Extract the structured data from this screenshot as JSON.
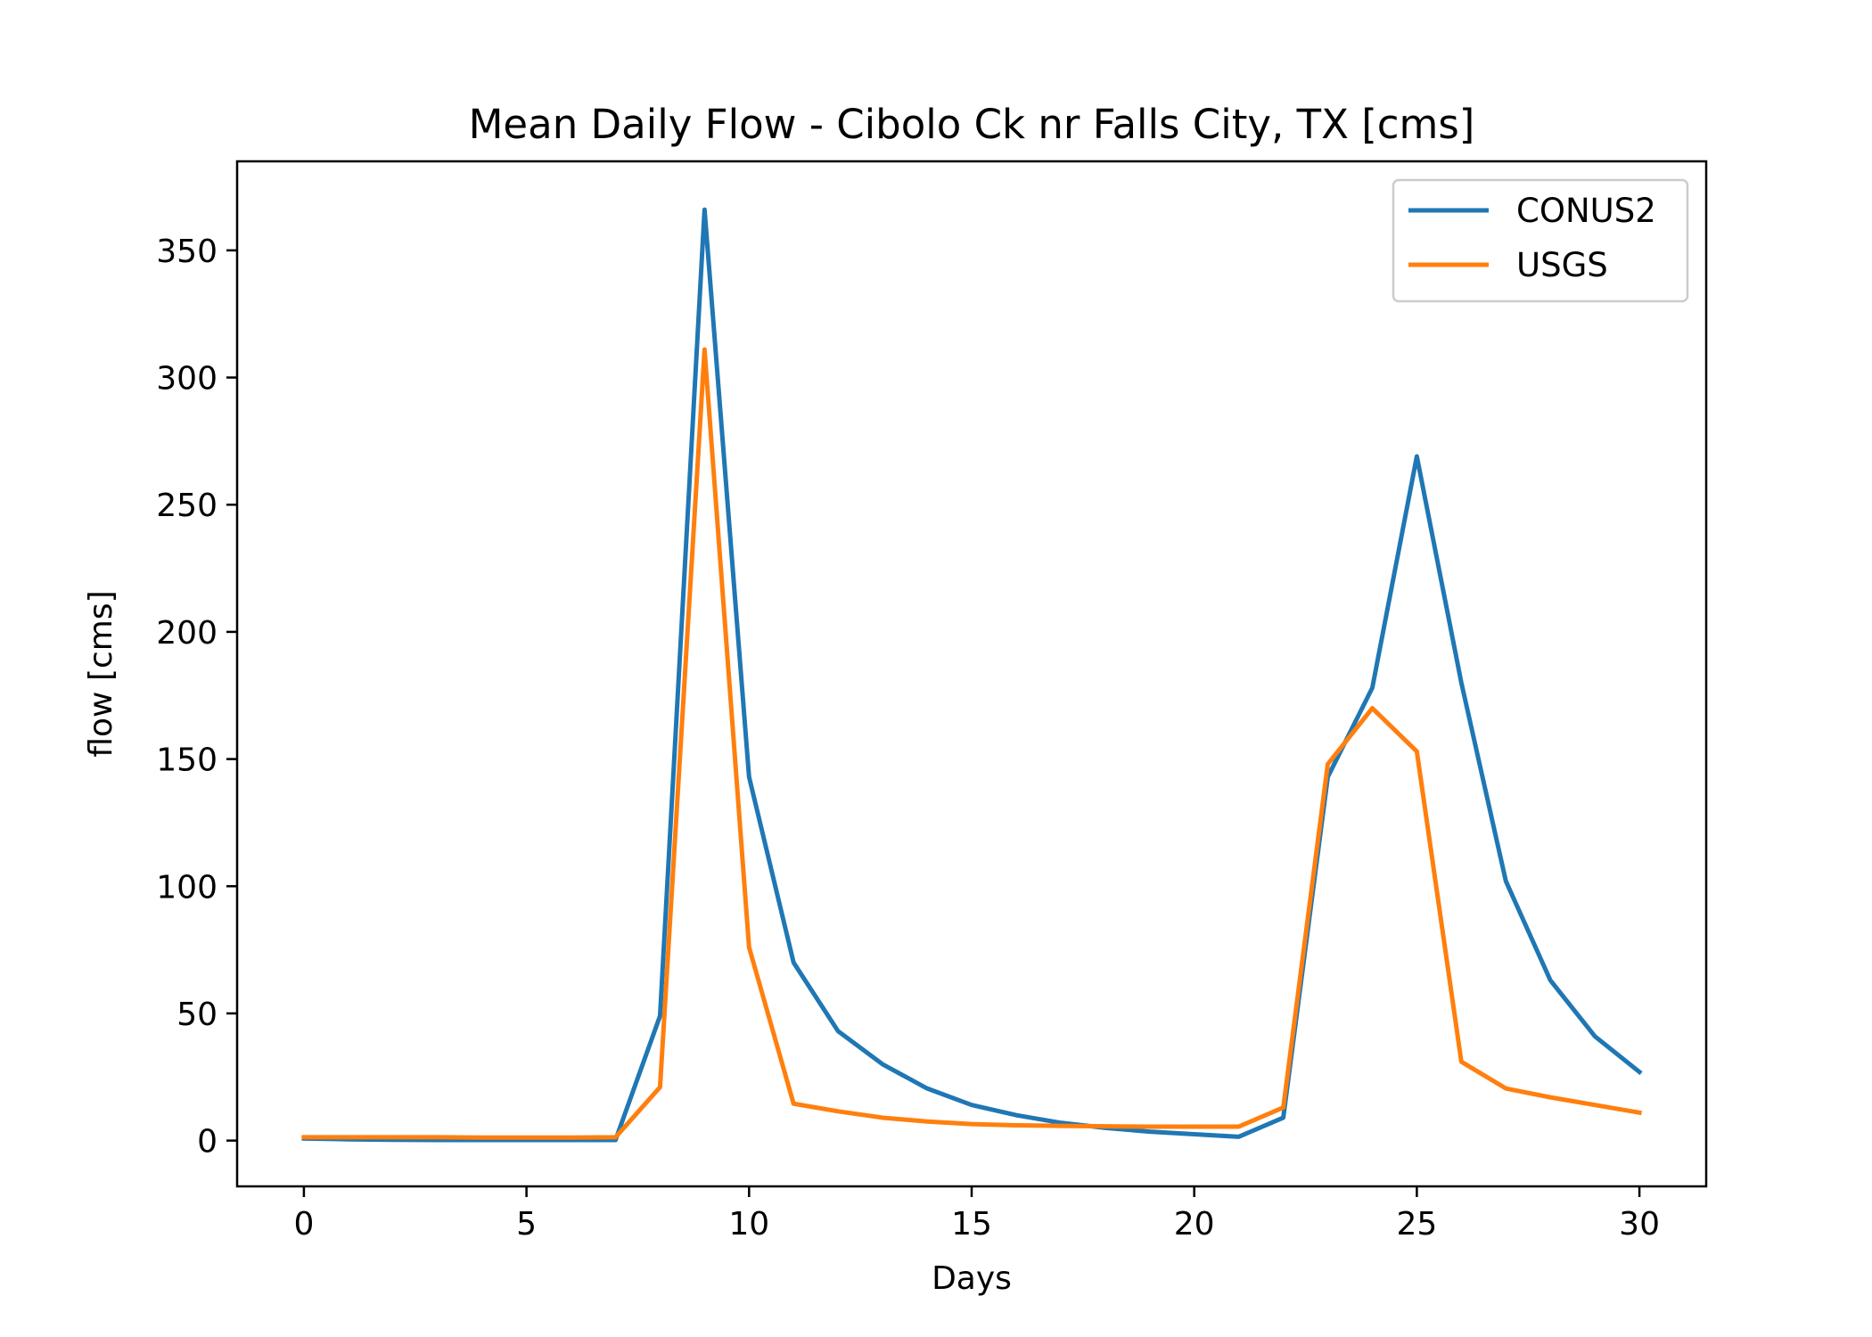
{
  "chart_data": {
    "type": "line",
    "title": "Mean Daily Flow - Cibolo Ck nr Falls City, TX [cms]",
    "xlabel": "Days",
    "ylabel": "flow [cms]",
    "xlim": [
      -1.5,
      31.5
    ],
    "ylim": [
      -18,
      385
    ],
    "xticks": [
      0,
      5,
      10,
      15,
      20,
      25,
      30
    ],
    "yticks": [
      0,
      50,
      100,
      150,
      200,
      250,
      300,
      350
    ],
    "grid": false,
    "legend_position": "top-right",
    "x": [
      0,
      1,
      2,
      3,
      4,
      5,
      6,
      7,
      8,
      9,
      10,
      11,
      12,
      13,
      14,
      15,
      16,
      17,
      18,
      19,
      20,
      21,
      22,
      23,
      24,
      25,
      26,
      27,
      28,
      29,
      30
    ],
    "series": [
      {
        "name": "CONUS2",
        "color": "#1f77b4",
        "values": [
          0.8,
          0.5,
          0.3,
          0.2,
          0.2,
          0.2,
          0.2,
          0.2,
          49,
          366,
          143,
          70,
          43,
          30,
          20.5,
          14,
          10,
          7,
          5,
          3.5,
          2.5,
          1.5,
          9,
          143,
          178,
          269,
          180,
          102,
          63,
          41,
          27
        ]
      },
      {
        "name": "USGS",
        "color": "#ff7f0e",
        "values": [
          1.3,
          1.3,
          1.3,
          1.3,
          1.2,
          1.2,
          1.2,
          1.3,
          21,
          311,
          76,
          14.5,
          11.5,
          9,
          7.5,
          6.5,
          6,
          5.8,
          5.6,
          5.5,
          5.5,
          5.5,
          13,
          148,
          170,
          153,
          31,
          20.5,
          17,
          14,
          11
        ]
      }
    ]
  }
}
